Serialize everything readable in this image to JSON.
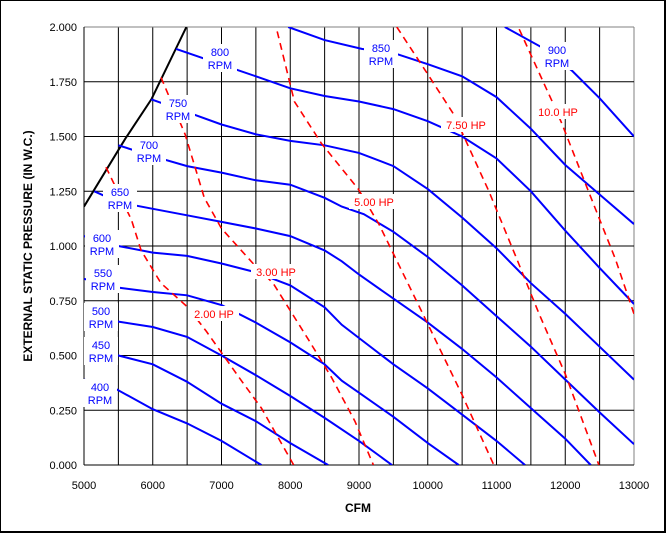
{
  "chart_data": {
    "type": "line",
    "title": "",
    "xlabel": "CFM",
    "ylabel": "EXTERNAL STATIC PRESSURE (IN W.C.)",
    "xlim": [
      5000,
      13000
    ],
    "ylim": [
      0,
      2.0
    ],
    "grid": true,
    "x_ticks": [
      "5000",
      "6000",
      "7000",
      "8000",
      "9000",
      "10000",
      "11000",
      "12000",
      "13000"
    ],
    "y_ticks": [
      "0.000",
      "0.250",
      "0.500",
      "0.750",
      "1.000",
      "1.250",
      "1.500",
      "1.750",
      "2.000"
    ],
    "colors": {
      "rpm": "#0000ff",
      "hp": "#ff0000",
      "limit": "#000000",
      "grid": "#000000"
    },
    "limit_curve": {
      "name": "limit",
      "x": [
        5000,
        5600,
        5980,
        6490
      ],
      "y": [
        1.18,
        1.49,
        1.67,
        2.0
      ]
    },
    "rpm_series": [
      {
        "name": "400",
        "unit": "RPM",
        "x": [
          5000,
          5450,
          6000,
          6500,
          7000,
          7580
        ],
        "y": [
          0.39,
          0.35,
          0.255,
          0.19,
          0.11,
          0.0
        ]
      },
      {
        "name": "450",
        "unit": "RPM",
        "x": [
          5000,
          5500,
          6000,
          6500,
          7000,
          7500,
          8000,
          8550
        ],
        "y": [
          0.53,
          0.5,
          0.46,
          0.38,
          0.28,
          0.2,
          0.1,
          0.0
        ]
      },
      {
        "name": "500",
        "unit": "RPM",
        "x": [
          5000,
          5500,
          6000,
          6500,
          7000,
          7500,
          8000,
          8500,
          9000,
          9480
        ],
        "y": [
          0.67,
          0.655,
          0.63,
          0.585,
          0.5,
          0.41,
          0.315,
          0.215,
          0.11,
          0.0
        ]
      },
      {
        "name": "550",
        "unit": "RPM",
        "x": [
          5000,
          5500,
          6000,
          6500,
          7000,
          7500,
          8000,
          8500,
          8750,
          9000,
          9500,
          10000,
          10450
        ],
        "y": [
          0.85,
          0.81,
          0.79,
          0.775,
          0.73,
          0.65,
          0.56,
          0.46,
          0.385,
          0.33,
          0.22,
          0.1,
          0.0
        ]
      },
      {
        "name": "600",
        "unit": "RPM",
        "x": [
          5000,
          5500,
          6000,
          6500,
          7000,
          7500,
          8000,
          8500,
          8750,
          9000,
          9500,
          10000,
          10500,
          11000,
          11415
        ],
        "y": [
          1.045,
          1.0,
          0.97,
          0.955,
          0.92,
          0.88,
          0.82,
          0.72,
          0.64,
          0.58,
          0.46,
          0.35,
          0.23,
          0.11,
          0.0
        ]
      },
      {
        "name": "650",
        "unit": "RPM",
        "x": [
          5150,
          5500,
          6000,
          6500,
          7000,
          7500,
          8000,
          8500,
          8750,
          9000,
          9500,
          10000,
          10500,
          11000,
          11500,
          12000,
          12370
        ],
        "y": [
          1.25,
          1.2,
          1.17,
          1.14,
          1.11,
          1.08,
          1.045,
          0.98,
          0.93,
          0.87,
          0.76,
          0.65,
          0.53,
          0.4,
          0.26,
          0.12,
          0.0
        ]
      },
      {
        "name": "700",
        "unit": "RPM",
        "x": [
          5500,
          6000,
          6500,
          7000,
          7500,
          8000,
          8500,
          8750,
          9070,
          9500,
          10000,
          10500,
          11000,
          11500,
          12000,
          12500,
          13000
        ],
        "y": [
          1.46,
          1.41,
          1.365,
          1.335,
          1.3,
          1.28,
          1.22,
          1.18,
          1.145,
          1.065,
          0.95,
          0.82,
          0.68,
          0.54,
          0.39,
          0.24,
          0.095
        ]
      },
      {
        "name": "750",
        "unit": "RPM",
        "x": [
          5977,
          6600,
          7000,
          7500,
          8000,
          8500,
          9000,
          9500,
          10000,
          10500,
          11000,
          11500,
          12000,
          12500,
          13000
        ],
        "y": [
          1.67,
          1.6,
          1.555,
          1.51,
          1.48,
          1.46,
          1.425,
          1.365,
          1.26,
          1.13,
          0.99,
          0.83,
          0.69,
          0.54,
          0.39
        ]
      },
      {
        "name": "800",
        "unit": "RPM",
        "x": [
          6340,
          7170,
          7500,
          8000,
          8500,
          9000,
          9500,
          10000,
          10500,
          11000,
          11500,
          12000,
          12500,
          13000
        ],
        "y": [
          1.9,
          1.81,
          1.775,
          1.72,
          1.685,
          1.66,
          1.625,
          1.57,
          1.5,
          1.4,
          1.25,
          1.07,
          0.9,
          0.735
        ]
      },
      {
        "name": "850",
        "unit": "RPM",
        "x": [
          7970,
          8500,
          9040,
          9520,
          10000,
          10500,
          11000,
          11500,
          12000,
          12500,
          13000
        ],
        "y": [
          2.0,
          1.94,
          1.9,
          1.88,
          1.83,
          1.775,
          1.68,
          1.535,
          1.37,
          1.235,
          1.1
        ]
      },
      {
        "name": "900",
        "unit": "RPM",
        "x": [
          11120,
          11700,
          12100,
          12500,
          13000
        ],
        "y": [
          2.0,
          1.9,
          1.8,
          1.675,
          1.5
        ]
      }
    ],
    "hp_series": [
      {
        "name": "2.00 HP",
        "x": [
          5320,
          5690,
          5830,
          6120,
          6510,
          6780,
          7290,
          7580,
          8050
        ],
        "y": [
          1.36,
          1.12,
          0.98,
          0.83,
          0.72,
          0.61,
          0.385,
          0.26,
          0.0
        ]
      },
      {
        "name": "3.00 HP",
        "x": [
          6120,
          6470,
          6750,
          7000,
          7460,
          7750,
          8270,
          8600,
          8940,
          9210
        ],
        "y": [
          1.77,
          1.51,
          1.22,
          1.08,
          0.92,
          0.83,
          0.57,
          0.4,
          0.2,
          0.0
        ]
      },
      {
        "name": "5.00 HP",
        "x": [
          7810,
          8060,
          8450,
          8990,
          9290,
          9960,
          10500,
          10960
        ],
        "y": [
          1.98,
          1.66,
          1.47,
          1.26,
          1.1,
          0.67,
          0.32,
          0.0
        ]
      },
      {
        "name": "7.50 HP",
        "x": [
          9550,
          10010,
          10380,
          10890,
          11270,
          11620,
          12000,
          12490
        ],
        "y": [
          2.0,
          1.78,
          1.6,
          1.25,
          0.96,
          0.69,
          0.415,
          0.0
        ]
      },
      {
        "name": "10.0 HP",
        "x": [
          11330,
          11810,
          11950,
          12350,
          12730,
          13000
        ],
        "y": [
          1.99,
          1.66,
          1.56,
          1.24,
          0.94,
          0.69
        ]
      }
    ]
  }
}
